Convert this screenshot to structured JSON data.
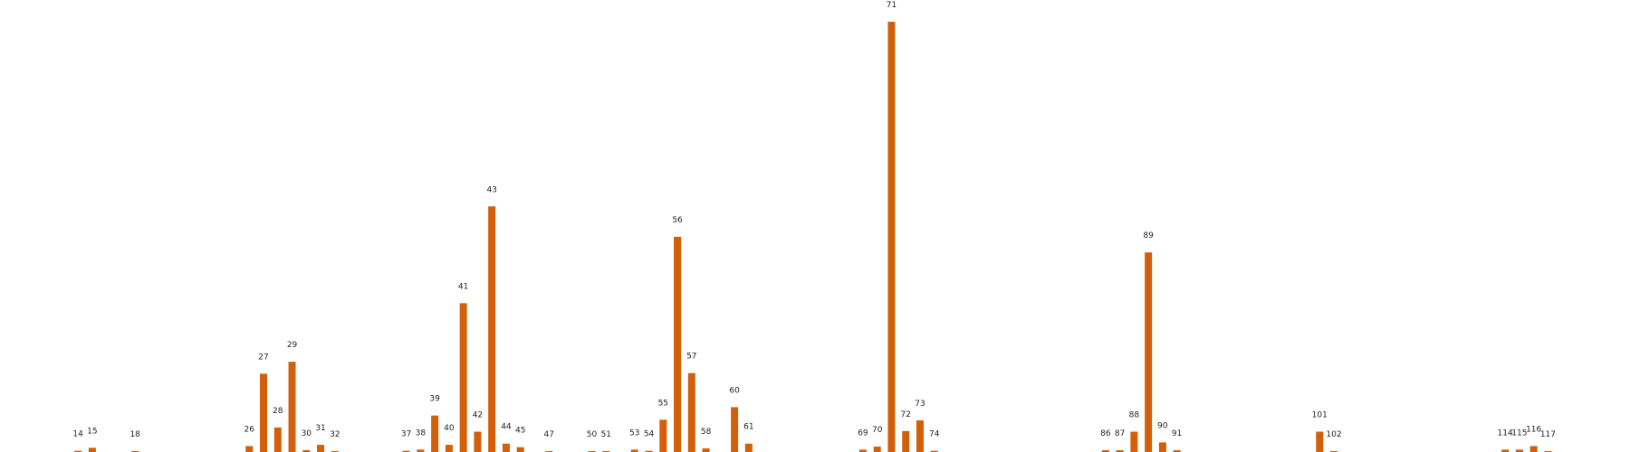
{
  "colors": {
    "bar": "#d35f0a",
    "label": "#222222",
    "background": "#ffffff"
  },
  "chart_data": {
    "type": "bar",
    "title": "",
    "xlabel": "",
    "ylabel": "",
    "grid": false,
    "legend": "none",
    "xlim": [
      0,
      119
    ],
    "ylim": [
      0,
      72
    ],
    "categories": [
      "14",
      "15",
      "18",
      "26",
      "27",
      "28",
      "29",
      "30",
      "31",
      "32",
      "37",
      "38",
      "39",
      "40",
      "41",
      "42",
      "43",
      "44",
      "45",
      "47",
      "50",
      "51",
      "53",
      "54",
      "55",
      "56",
      "57",
      "58",
      "60",
      "61",
      "69",
      "70",
      "71",
      "72",
      "73",
      "74",
      "86",
      "87",
      "88",
      "89",
      "90",
      "91",
      "101",
      "102",
      "114",
      "115",
      "116",
      "117"
    ],
    "values": [
      0.2,
      0.7,
      0.05,
      1.0,
      13.1,
      4.1,
      15.1,
      0.3,
      1.2,
      0.05,
      0.2,
      0.4,
      6.1,
      1.2,
      24.9,
      3.4,
      41.1,
      1.4,
      0.8,
      0.1,
      0.05,
      0.1,
      0.4,
      0.2,
      5.4,
      36.0,
      13.2,
      0.6,
      7.5,
      1.4,
      0.4,
      0.9,
      72.0,
      3.5,
      5.3,
      0.2,
      0.3,
      0.3,
      3.4,
      33.4,
      1.6,
      0.3,
      3.4,
      0.1,
      0.4,
      0.4,
      1.0,
      0.05
    ]
  }
}
